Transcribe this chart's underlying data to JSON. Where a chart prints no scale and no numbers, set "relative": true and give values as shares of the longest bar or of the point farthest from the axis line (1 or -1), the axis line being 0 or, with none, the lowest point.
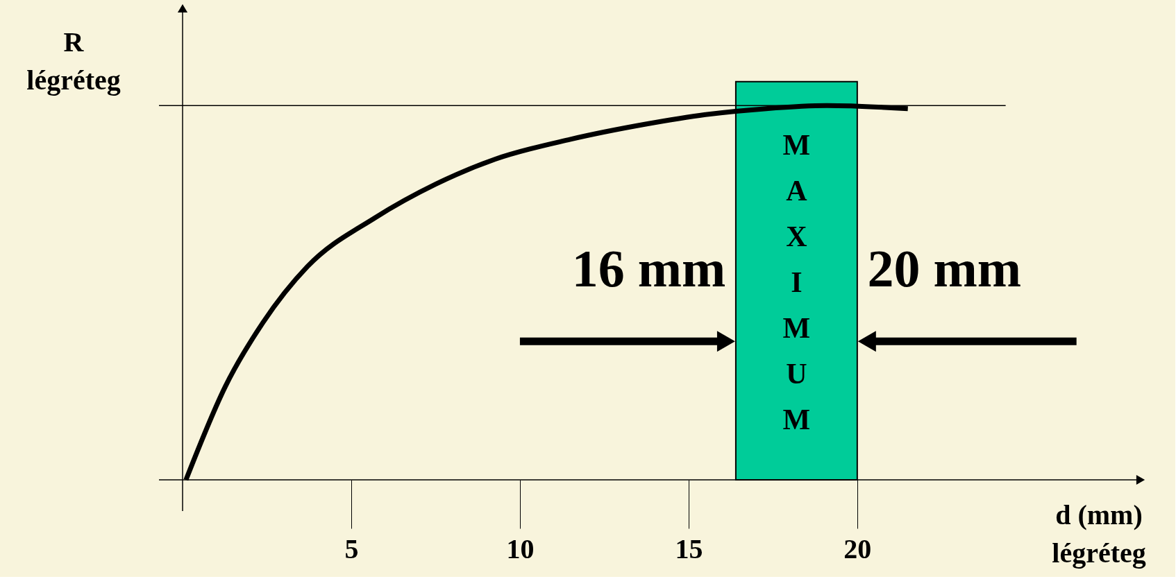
{
  "chart_data": {
    "type": "line",
    "relative": true,
    "xlabel": "d (mm)\nlégréteg",
    "ylabel": "R\nlégréteg",
    "x": [
      0.1,
      1.27,
      2.38,
      3.7,
      5.7,
      7.5,
      9.27,
      11.5,
      13.7,
      15.5,
      17.3,
      19.1,
      21.5
    ],
    "series": [
      {
        "color": "#000000",
        "values": [
          0,
          0.25,
          0.42,
          0.57,
          0.7,
          0.79,
          0.857,
          0.91,
          0.95,
          0.976,
          0.992,
          1,
          0.992
        ]
      }
    ],
    "xlim": [
      -0.7,
      28.4
    ],
    "xticks": [
      5,
      10,
      15,
      20
    ],
    "grid": false,
    "ref_lines": [
      {
        "axis": "y",
        "value": 1,
        "color": "#000000"
      }
    ],
    "bands": [
      {
        "axis": "x",
        "from": 16.4,
        "to": 20,
        "label": "MAXIMUM",
        "color": "#00cc99"
      }
    ],
    "annotations": [
      {
        "text": "16 mm",
        "x": 16.4,
        "y": 0.37
      },
      {
        "text": "20 mm",
        "x": 20,
        "y": 0.37
      }
    ]
  }
}
